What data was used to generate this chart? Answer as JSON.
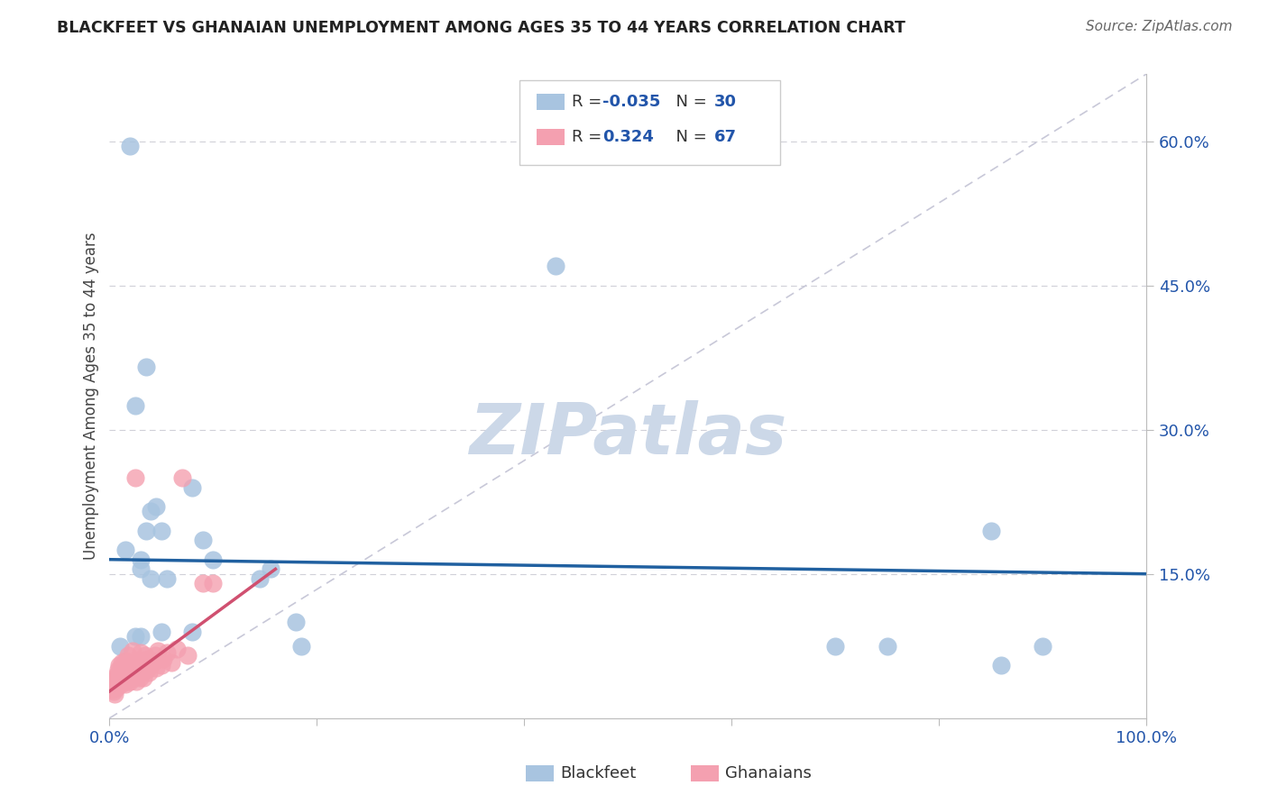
{
  "title": "BLACKFEET VS GHANAIAN UNEMPLOYMENT AMONG AGES 35 TO 44 YEARS CORRELATION CHART",
  "source": "Source: ZipAtlas.com",
  "ylabel": "Unemployment Among Ages 35 to 44 years",
  "ytick_labels": [
    "15.0%",
    "30.0%",
    "45.0%",
    "60.0%"
  ],
  "ytick_values": [
    0.15,
    0.3,
    0.45,
    0.6
  ],
  "legend_blue_label": "Blackfeet",
  "legend_pink_label": "Ghanaians",
  "blue_color": "#a8c4e0",
  "pink_color": "#f4a0b0",
  "trend_blue_color": "#2060a0",
  "trend_pink_color": "#d05070",
  "diagonal_color": "#c8c8d8",
  "bg_color": "#ffffff",
  "watermark_color": "#ccd8e8",
  "blue_scatter_x": [
    0.02,
    0.035,
    0.025,
    0.045,
    0.035,
    0.08,
    0.04,
    0.43,
    0.05,
    0.1,
    0.03,
    0.09,
    0.03,
    0.155,
    0.145,
    0.85,
    0.9,
    0.7,
    0.05,
    0.08,
    0.18,
    0.025,
    0.03,
    0.01,
    0.015,
    0.04,
    0.055,
    0.185,
    0.75,
    0.86
  ],
  "blue_scatter_y": [
    0.595,
    0.365,
    0.325,
    0.22,
    0.195,
    0.24,
    0.215,
    0.47,
    0.195,
    0.165,
    0.165,
    0.185,
    0.155,
    0.155,
    0.145,
    0.195,
    0.075,
    0.075,
    0.09,
    0.09,
    0.1,
    0.085,
    0.085,
    0.075,
    0.175,
    0.145,
    0.145,
    0.075,
    0.075,
    0.055
  ],
  "pink_scatter_x": [
    0.003,
    0.004,
    0.004,
    0.005,
    0.005,
    0.005,
    0.006,
    0.006,
    0.007,
    0.007,
    0.007,
    0.008,
    0.008,
    0.009,
    0.009,
    0.01,
    0.01,
    0.01,
    0.011,
    0.011,
    0.012,
    0.012,
    0.013,
    0.013,
    0.014,
    0.015,
    0.015,
    0.016,
    0.017,
    0.018,
    0.018,
    0.019,
    0.02,
    0.021,
    0.022,
    0.022,
    0.023,
    0.024,
    0.025,
    0.026,
    0.027,
    0.028,
    0.029,
    0.03,
    0.031,
    0.032,
    0.033,
    0.034,
    0.035,
    0.036,
    0.037,
    0.038,
    0.04,
    0.041,
    0.042,
    0.044,
    0.045,
    0.047,
    0.05,
    0.052,
    0.055,
    0.06,
    0.065,
    0.07,
    0.075,
    0.09,
    0.1
  ],
  "pink_scatter_y": [
    0.03,
    0.032,
    0.028,
    0.035,
    0.04,
    0.025,
    0.038,
    0.042,
    0.035,
    0.045,
    0.032,
    0.038,
    0.05,
    0.04,
    0.055,
    0.038,
    0.042,
    0.048,
    0.035,
    0.052,
    0.04,
    0.058,
    0.038,
    0.055,
    0.042,
    0.035,
    0.06,
    0.048,
    0.052,
    0.038,
    0.065,
    0.042,
    0.038,
    0.055,
    0.045,
    0.07,
    0.052,
    0.048,
    0.25,
    0.038,
    0.06,
    0.055,
    0.042,
    0.068,
    0.05,
    0.055,
    0.042,
    0.065,
    0.058,
    0.05,
    0.062,
    0.048,
    0.055,
    0.06,
    0.058,
    0.065,
    0.052,
    0.07,
    0.055,
    0.062,
    0.068,
    0.058,
    0.072,
    0.25,
    0.065,
    0.14,
    0.14
  ],
  "xlim": [
    0.0,
    1.0
  ],
  "ylim": [
    0.0,
    0.67
  ],
  "blue_trend_x0": 0.0,
  "blue_trend_x1": 1.0,
  "blue_trend_y0": 0.165,
  "blue_trend_y1": 0.15,
  "pink_trend_x0": 0.0,
  "pink_trend_x1": 0.16,
  "pink_trend_y0": 0.028,
  "pink_trend_y1": 0.155
}
